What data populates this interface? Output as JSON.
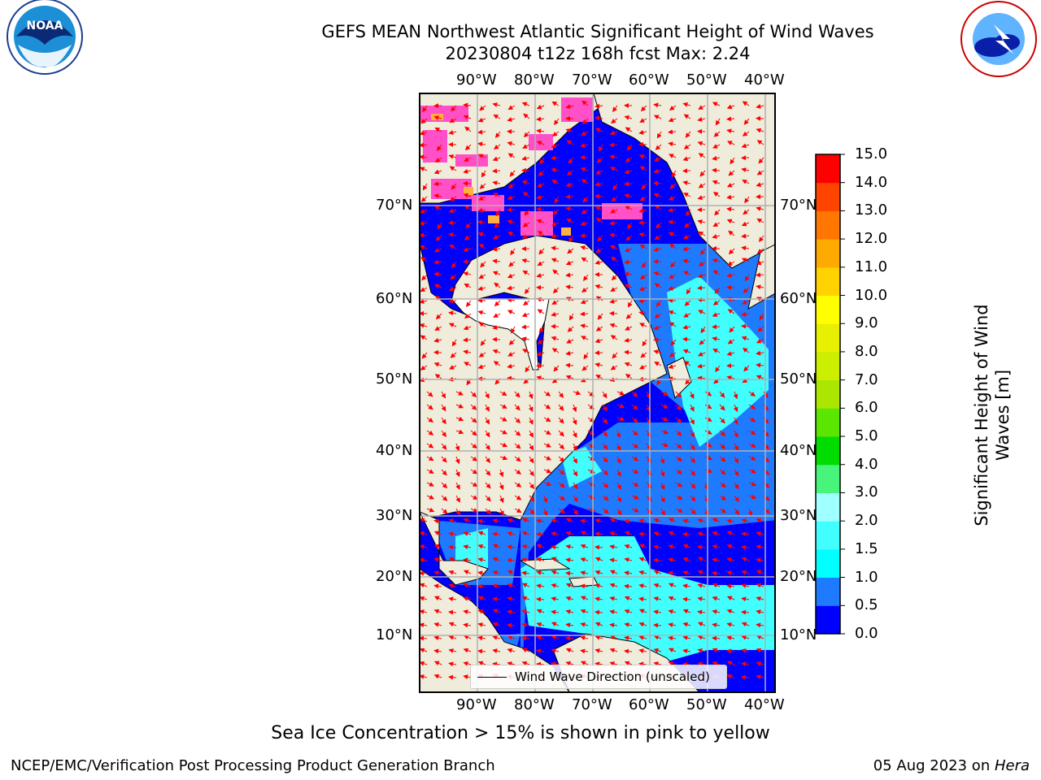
{
  "title": {
    "line1": "GEFS MEAN Northwest Atlantic Significant Height of Wind Waves",
    "line2": "20230804 t12z 168h fcst   Max: 2.24"
  },
  "logos": {
    "left": {
      "name": "NOAA",
      "ring_text": "NATIONAL OCEANIC AND ATMOSPHERIC ADMINISTRATION · U.S. DEPARTMENT OF COMMERCE"
    },
    "right": {
      "name": "NATIONAL WEATHER SERVICE"
    }
  },
  "axes": {
    "lon_ticks": [
      "90°W",
      "80°W",
      "70°W",
      "60°W",
      "50°W",
      "40°W"
    ],
    "lat_ticks": [
      "70°N",
      "60°N",
      "50°N",
      "40°N",
      "30°N",
      "20°N",
      "10°N"
    ]
  },
  "legend": {
    "label": "Wind Wave Direction (unscaled)"
  },
  "colorbar": {
    "title": "Significant Height of Wind Waves [m]",
    "levels": [
      0.0,
      0.5,
      1.0,
      1.5,
      2.0,
      3.0,
      4.0,
      5.0,
      6.0,
      7.0,
      8.0,
      9.0,
      10.0,
      11.0,
      12.0,
      13.0,
      14.0,
      15.0
    ],
    "tick_labels": [
      "0.0",
      "0.5",
      "1.0",
      "1.5",
      "2.0",
      "3.0",
      "4.0",
      "5.0",
      "6.0",
      "7.0",
      "8.0",
      "9.0",
      "10.0",
      "11.0",
      "12.0",
      "13.0",
      "14.0",
      "15.0"
    ],
    "colors": [
      "#0000ff",
      "#1e7bff",
      "#00ffff",
      "#41ffff",
      "#a0ffff",
      "#46f57a",
      "#00dc00",
      "#5ae600",
      "#aae600",
      "#ccee00",
      "#e6f000",
      "#ffff00",
      "#ffd200",
      "#ffaa00",
      "#ff7700",
      "#ff4400",
      "#ff0000"
    ]
  },
  "colors": {
    "land": "#efecdc",
    "ocean_low": "#0000ff",
    "ocean_mid": "#1e7bff",
    "ocean_high": "#41ffff",
    "sea_ice": "#ff50c8",
    "arrows": "#ff0000",
    "grid": "#b0b0b0"
  },
  "annotation": "Sea Ice Concentration > 15% is shown in pink to yellow",
  "footer": {
    "left": "NCEP/EMC/Verification Post Processing Product Generation Branch",
    "right_date": "05 Aug 2023 on ",
    "right_host": "Hera"
  }
}
